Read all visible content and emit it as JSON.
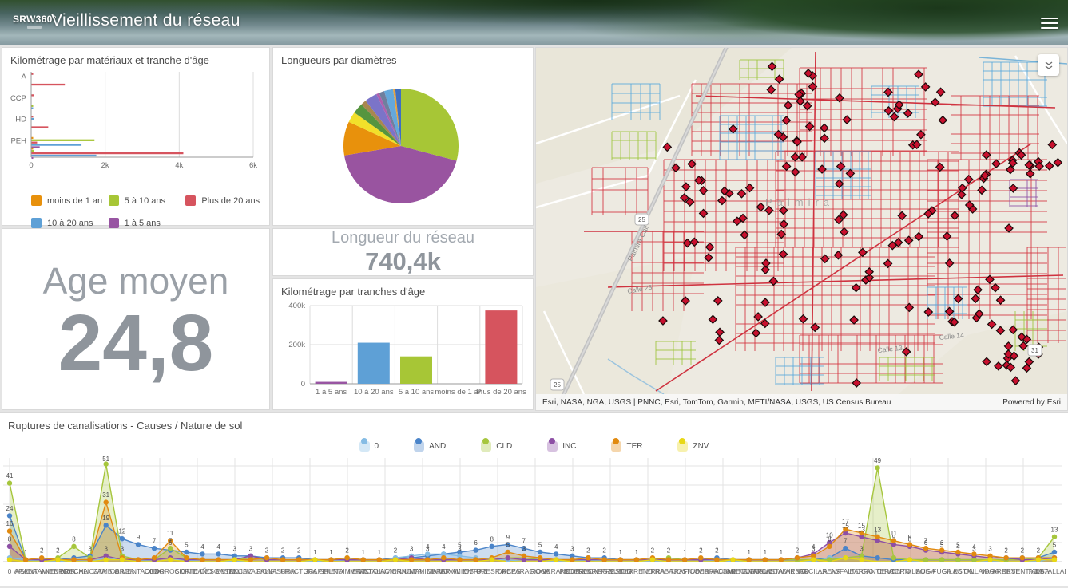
{
  "header": {
    "logo": "SRW360°",
    "title": "Vieillissement du réseau"
  },
  "panels": {
    "materiaux": {
      "title": "Kilométrage par matériaux et tranche d'âge"
    },
    "age": {
      "label": "Age moyen",
      "value": "24,8"
    },
    "diametres": {
      "title": "Longueurs par diamètres"
    },
    "longueur": {
      "label": "Longueur du réseau",
      "value": "740,4k"
    },
    "tranches": {
      "title": "Kilométrage par tranches d'âge"
    },
    "ruptures": {
      "title": "Ruptures de canalisations - Causes / Nature de sol"
    }
  },
  "map": {
    "attribution": "Esri, NASA, NGA, USGS | PNNC, Esri, TomTom, Garmin, METI/NASA, USGS, US Census Bureau",
    "powered_by": "Powered by Esri",
    "labels": {
      "road": "Palmira Cali",
      "city": "Palmira",
      "streets": [
        "Calle 23",
        "Calle 13",
        "Calle 14"
      ],
      "shields": [
        "25",
        "25",
        "31"
      ]
    }
  },
  "chart_data": [
    {
      "id": "materiaux",
      "type": "bar",
      "orientation": "horizontal",
      "title": "Kilométrage par matériaux et tranche d'âge",
      "groups": [
        "A",
        "",
        "CCP",
        "",
        "HD",
        "",
        "PEH",
        ""
      ],
      "visible_axis_labels": [
        "A",
        "CCP",
        "HD",
        "PEH"
      ],
      "xlim": [
        0,
        6000
      ],
      "xticks": [
        "0",
        "2k",
        "4k",
        "6k"
      ],
      "series": [
        {
          "name": "moins de 1 an",
          "color": "#e8910c",
          "values": [
            0,
            0,
            0,
            0,
            0,
            0,
            40,
            15
          ]
        },
        {
          "name": "5 à 10 ans",
          "color": "#a7c636",
          "values": [
            0,
            0,
            0,
            30,
            0,
            0,
            1700,
            60
          ]
        },
        {
          "name": "Plus de 20 ans",
          "color": "#d6545e",
          "values": [
            30,
            900,
            60,
            0,
            15,
            450,
            150,
            4100
          ]
        },
        {
          "name": "10 à 20 ans",
          "color": "#5ea0d6",
          "values": [
            0,
            0,
            0,
            40,
            55,
            0,
            1350,
            1750
          ]
        },
        {
          "name": "1 à 5 ans",
          "color": "#9855a2",
          "values": [
            0,
            0,
            0,
            0,
            0,
            0,
            220,
            30
          ]
        }
      ]
    },
    {
      "id": "diametres",
      "type": "pie",
      "title": "Longueurs par diamètres",
      "slices": [
        {
          "color": "#a7c636",
          "value": 29
        },
        {
          "color": "#9954a0",
          "value": 43
        },
        {
          "color": "#e8910c",
          "value": 9.5
        },
        {
          "color": "#f2e02a",
          "value": 3
        },
        {
          "color": "#56953f",
          "value": 3
        },
        {
          "color": "#a8874f",
          "value": 1.5
        },
        {
          "color": "#7b74c8",
          "value": 3.5
        },
        {
          "color": "#b05fae",
          "value": 0.8
        },
        {
          "color": "#6f7f9e",
          "value": 1.5
        },
        {
          "color": "#64a8dc",
          "value": 2.5
        },
        {
          "color": "#e8a33d",
          "value": 0.6
        },
        {
          "color": "#3f6fc1",
          "value": 1.6
        }
      ]
    },
    {
      "id": "tranches",
      "type": "bar",
      "title": "Kilométrage par tranches d'âge",
      "categories": [
        "1 à 5 ans",
        "10 à 20 ans",
        "5 à 10 ans",
        "moins de 1 an",
        "Plus de 20 ans"
      ],
      "values": [
        10000,
        210000,
        140000,
        500,
        375000
      ],
      "colors": [
        "#9855a2",
        "#5ea0d6",
        "#a7c636",
        "#b5b5b5",
        "#d6545e"
      ],
      "ylim": [
        0,
        400000
      ],
      "yticks": [
        "0",
        "200k",
        "400k"
      ]
    },
    {
      "id": "ruptures",
      "type": "area",
      "title": "Ruptures de canalisations - Causes / Nature de sol",
      "categories": [
        "0",
        "ARADA",
        "ASENTAMIENTO",
        "ANTERIOR",
        "BRECHA",
        "CALICATA",
        "CAMBIO",
        "CARGA",
        "CIMENTACION",
        "CODO",
        "CORROSION",
        "CORTE",
        "DAÑO",
        "DESGASTE",
        "ESTALLIDO",
        "EXCAVACION",
        "FALLA",
        "FISURA",
        "FRACTURA",
        "GOLPE",
        "GRIETA",
        "HUNDIMIENTO",
        "IMPACTO",
        "INSTALACION",
        "INVIERNO",
        "JUNTA",
        "MANIOBRA",
        "MATERIAL",
        "MOVIMIENTO",
        "OBRAS",
        "PRESION",
        "RAICES",
        "REPARACION",
        "ROCA",
        "VERANO",
        "PIEDRA",
        "SOBRECARGA",
        "SOBREPRESION",
        "SUELO",
        "TERRENO",
        "TIERRA",
        "TRABAJOS",
        "TRAFICO",
        "TUBERIA",
        "VIBRACION",
        "ACOMETIDA",
        "ADECUACION",
        "ANTIGUEDAD",
        "APLASTAMIENTO",
        "ARBOL",
        "ARCILLA",
        "ARENA",
        "ASFALTO",
        "BARRO",
        "CANTERA",
        "CEMENTO",
        "CORNILEOS",
        "AUGA",
        "FUGA",
        "CILACION",
        "ESTALLAIDO",
        "VARA",
        "ARERSE",
        "REVENTADA",
        "TAEBA",
        "ESTALLADA"
      ],
      "series": [
        {
          "name": "0",
          "color": "#85bce4",
          "values": [
            2,
            1,
            0,
            0,
            1,
            0,
            2,
            1,
            1,
            0,
            1,
            1,
            0,
            0,
            0,
            0,
            0,
            0,
            0,
            0,
            1,
            0,
            0,
            0,
            2,
            3,
            4,
            4,
            3,
            2,
            1,
            1,
            0,
            0,
            0,
            0,
            1,
            0,
            0,
            0,
            0,
            0,
            0,
            0,
            1,
            0,
            0,
            0,
            0,
            0,
            0,
            2,
            2,
            1,
            0,
            0,
            0,
            0,
            0,
            0,
            0,
            0,
            0,
            0,
            0,
            2
          ]
        },
        {
          "name": "AND",
          "color": "#4a84c9",
          "values": [
            24,
            1,
            1,
            1,
            2,
            3,
            19,
            12,
            9,
            7,
            6,
            5,
            4,
            4,
            3,
            3,
            2,
            2,
            2,
            1,
            1,
            1,
            1,
            1,
            2,
            2,
            3,
            4,
            5,
            6,
            8,
            9,
            7,
            5,
            4,
            3,
            2,
            2,
            1,
            1,
            1,
            1,
            1,
            1,
            2,
            1,
            1,
            1,
            1,
            1,
            1,
            2,
            7,
            3,
            2,
            1,
            1,
            1,
            1,
            1,
            1,
            1,
            1,
            2,
            2,
            5
          ]
        },
        {
          "name": "CLD",
          "color": "#a6c63d",
          "values": [
            41,
            1,
            1,
            2,
            8,
            2,
            51,
            3,
            1,
            1,
            7,
            2,
            1,
            1,
            1,
            2,
            1,
            1,
            1,
            1,
            1,
            2,
            1,
            1,
            1,
            1,
            1,
            1,
            1,
            1,
            1,
            2,
            2,
            1,
            1,
            1,
            1,
            1,
            1,
            1,
            1,
            2,
            1,
            1,
            1,
            1,
            1,
            1,
            1,
            1,
            1,
            1,
            2,
            3,
            49,
            2,
            1,
            1,
            1,
            1,
            1,
            1,
            1,
            1,
            2,
            13
          ]
        },
        {
          "name": "INC",
          "color": "#8d4fa5",
          "values": [
            8,
            1,
            1,
            1,
            1,
            1,
            3,
            1,
            1,
            1,
            2,
            1,
            1,
            1,
            1,
            3,
            1,
            1,
            1,
            1,
            1,
            1,
            1,
            1,
            1,
            2,
            1,
            1,
            1,
            1,
            1,
            2,
            1,
            1,
            1,
            1,
            1,
            1,
            1,
            1,
            1,
            1,
            1,
            1,
            1,
            1,
            1,
            1,
            1,
            2,
            4,
            10,
            15,
            13,
            11,
            9,
            8,
            6,
            5,
            4,
            3,
            2,
            2,
            1,
            1,
            2
          ]
        },
        {
          "name": "TER",
          "color": "#e18a10",
          "values": [
            16,
            1,
            2,
            1,
            1,
            1,
            31,
            2,
            1,
            2,
            11,
            2,
            1,
            1,
            1,
            1,
            2,
            1,
            1,
            1,
            1,
            2,
            1,
            1,
            1,
            1,
            1,
            2,
            1,
            1,
            2,
            5,
            3,
            2,
            1,
            1,
            2,
            1,
            1,
            1,
            2,
            1,
            1,
            2,
            1,
            1,
            1,
            1,
            1,
            2,
            3,
            8,
            17,
            15,
            13,
            11,
            9,
            7,
            6,
            5,
            4,
            3,
            2,
            2,
            2,
            2
          ]
        },
        {
          "name": "ZNV",
          "color": "#e8d816",
          "values": [
            1,
            0,
            0,
            1,
            0,
            0,
            1,
            1,
            0,
            0,
            1,
            0,
            0,
            0,
            1,
            0,
            0,
            0,
            0,
            1,
            0,
            0,
            0,
            0,
            1,
            0,
            0,
            0,
            0,
            0,
            1,
            0,
            0,
            0,
            1,
            0,
            0,
            0,
            0,
            0,
            1,
            0,
            0,
            0,
            0,
            1,
            0,
            0,
            0,
            0,
            1,
            0,
            2,
            1,
            0,
            0,
            1,
            0,
            0,
            0,
            0,
            1,
            0,
            0,
            1,
            1
          ]
        }
      ],
      "legend": [
        "0",
        "AND",
        "CLD",
        "INC",
        "TER",
        "ZNV"
      ]
    }
  ]
}
